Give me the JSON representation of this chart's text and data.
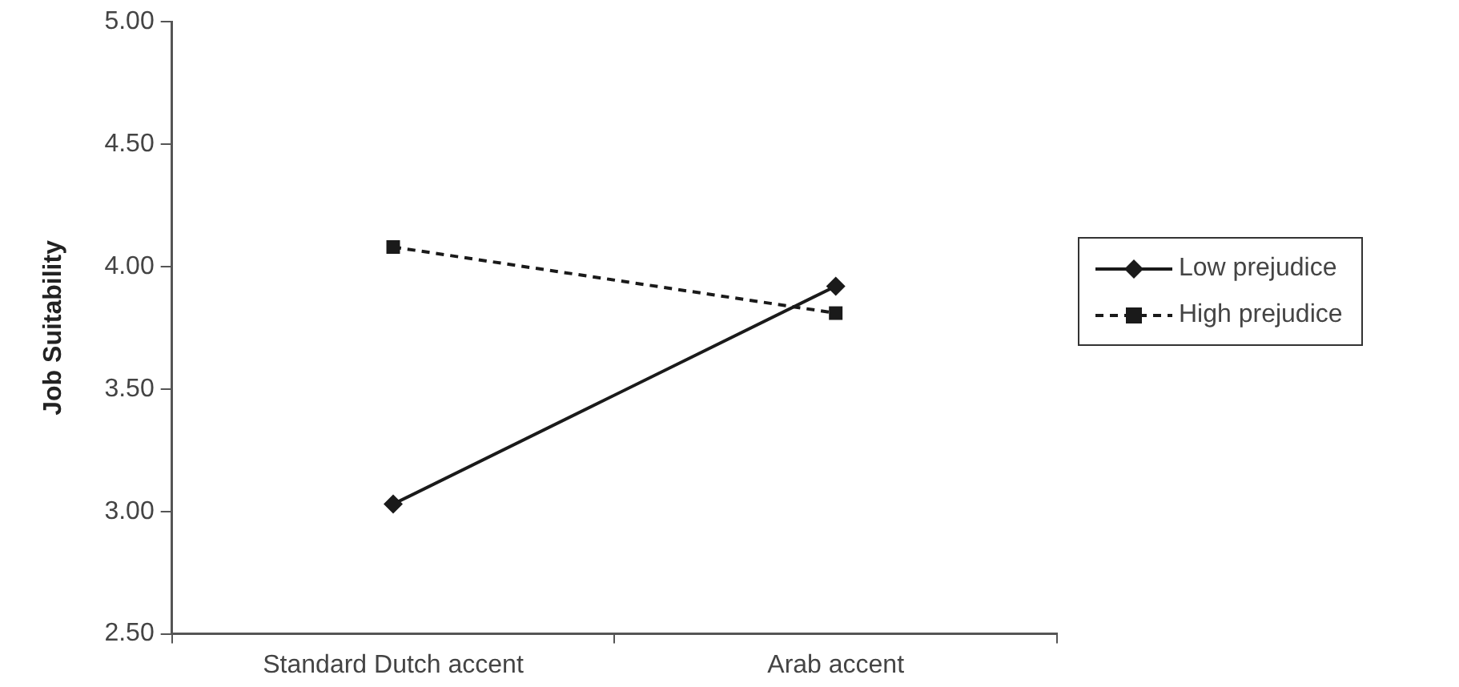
{
  "chart_data": {
    "type": "line",
    "ylabel": "Job Suitability",
    "categories": [
      "Standard Dutch accent",
      "Arab accent"
    ],
    "series": [
      {
        "name": "Low prejudice",
        "color": "#1a1a1a",
        "values": [
          3.03,
          3.92
        ],
        "marker": "diamond",
        "line_style": "solid"
      },
      {
        "name": "High prejudice",
        "color": "#1a1a1a",
        "values": [
          4.08,
          3.81
        ],
        "marker": "square",
        "line_style": "dashed"
      }
    ],
    "ylim": [
      2.5,
      5.0
    ],
    "yticks": [
      {
        "value": 2.5,
        "label": "2.50"
      },
      {
        "value": 3.0,
        "label": "3.00"
      },
      {
        "value": 3.5,
        "label": "3.50"
      },
      {
        "value": 4.0,
        "label": "4.00"
      },
      {
        "value": 4.5,
        "label": "4.50"
      },
      {
        "value": 5.0,
        "label": "5.00"
      }
    ],
    "grid": false,
    "legend": "right"
  }
}
